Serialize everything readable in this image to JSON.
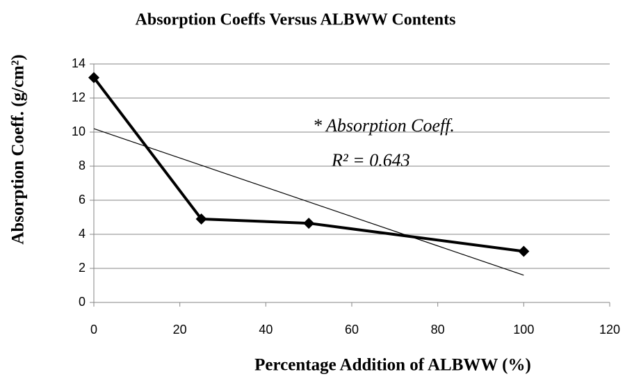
{
  "chart_data": {
    "type": "line",
    "title": "Absorption Coeffs Versus ALBWW Contents",
    "xlabel": "Percentage Addition of ALBWW (%)",
    "ylabel": "Absorption Coeff. (g/cm²)",
    "annotations": [
      "* Absorption Coeff.",
      "R² = 0.643"
    ],
    "series": [
      {
        "x": [
          0,
          25,
          50,
          100
        ],
        "values": [
          13.2,
          4.9,
          4.65,
          3.0
        ],
        "color": "#000000"
      },
      {
        "x": [
          0,
          100
        ],
        "values": [
          10.2,
          1.6
        ],
        "color": "#000000"
      }
    ],
    "xlim": [
      0,
      120
    ],
    "xticks": [
      0,
      20,
      40,
      60,
      80,
      100,
      120
    ],
    "ylim": [
      0,
      14
    ],
    "yticks": [
      0,
      2,
      4,
      6,
      8,
      10,
      12,
      14
    ],
    "grid": true
  }
}
